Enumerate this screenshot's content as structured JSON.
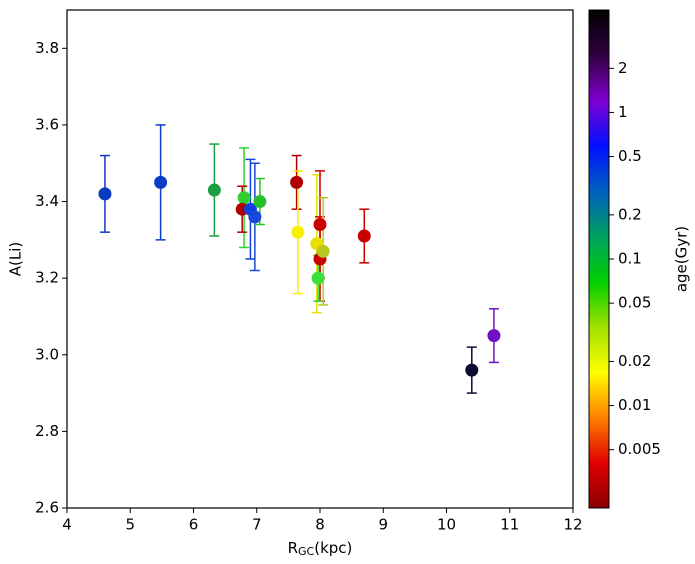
{
  "chart_data": {
    "type": "scatter",
    "ylabel": "A(Li)",
    "xlabel_main": "R",
    "xlabel_sub": "GC",
    "xlabel_unit": "(kpc)",
    "x": [
      4.6,
      5.48,
      6.33,
      6.8,
      6.77,
      6.9,
      6.97,
      7.05,
      7.63,
      7.65,
      7.95,
      8.0,
      8.0,
      8.05,
      7.97,
      8.7,
      10.4,
      10.75
    ],
    "values": [
      3.42,
      3.45,
      3.43,
      3.41,
      3.38,
      3.38,
      3.36,
      3.4,
      3.45,
      3.32,
      3.29,
      3.34,
      3.25,
      3.27,
      3.2,
      3.31,
      2.96,
      3.05
    ],
    "errors": [
      0.1,
      0.15,
      0.12,
      0.13,
      0.06,
      0.13,
      0.14,
      0.06,
      0.07,
      0.16,
      0.18,
      0.14,
      0.11,
      0.14,
      0.06,
      0.07,
      0.06,
      0.07
    ],
    "colors": [
      "#0a3cc0",
      "#0a3cc8",
      "#1aa040",
      "#30d030",
      "#b00000",
      "#1040e0",
      "#1848d8",
      "#28c028",
      "#b00000",
      "#f8f000",
      "#e8e000",
      "#c80000",
      "#c80000",
      "#b8c820",
      "#38e038",
      "#c80000",
      "#0a0a30",
      "#7010c0"
    ],
    "xlim": [
      4,
      12
    ],
    "xticks": [
      4,
      5,
      6,
      7,
      8,
      9,
      10,
      11,
      12
    ],
    "ylim": [
      2.6,
      3.9
    ],
    "yticks": [
      2.6,
      2.8,
      {
        "value": 3,
        "label": "3.0"
      },
      3.2,
      3.4,
      3.6,
      3.8
    ],
    "colorbar_label": "age(Gyr)",
    "clim": [
      0.002,
      5
    ],
    "clog": true,
    "cticks": [
      0.005,
      0.01,
      0.02,
      0.05,
      0.1,
      0.2,
      0.5,
      1,
      2
    ],
    "colormap": [
      "#8a0000",
      "#e00000",
      "#ff8000",
      "#ffff00",
      "#a0e000",
      "#00d000",
      "#00a060",
      "#0060c0",
      "#0010ff",
      "#8000d0",
      "#300040",
      "#000000"
    ]
  }
}
